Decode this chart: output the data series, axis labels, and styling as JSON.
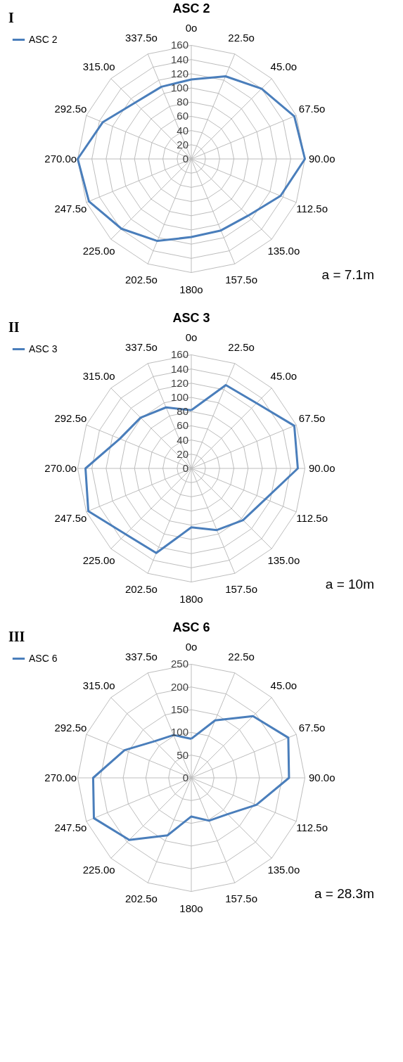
{
  "chart_data": [
    {
      "type": "radar",
      "title": "ASC 2",
      "categories": [
        "0o",
        "22.5o",
        "45.0o",
        "67.5o",
        "90.0o",
        "112.5o",
        "135.0o",
        "157.5o",
        "180o",
        "202.5o",
        "225.0o",
        "247.5o",
        "270.0o",
        "292.5o",
        "315.0o",
        "337.5o"
      ],
      "series": [
        {
          "name": "ASC 2",
          "color": "#4a7ebb",
          "values": [
            112,
            126,
            140,
            157,
            160,
            136,
            113,
            109,
            110,
            125,
            139,
            156,
            160,
            135,
            112,
            110
          ]
        }
      ],
      "ylim": [
        0,
        160
      ],
      "yticks": [
        0,
        20,
        40,
        60,
        80,
        100,
        120,
        140,
        160
      ],
      "grid": true,
      "legend": "top left",
      "annotations": [
        "I",
        "a = 7.1m"
      ]
    },
    {
      "type": "radar",
      "title": "ASC 3",
      "categories": [
        "0o",
        "22.5o",
        "45.0o",
        "67.5o",
        "90.0o",
        "112.5o",
        "135.0o",
        "157.5o",
        "180o",
        "202.5o",
        "225.0o",
        "247.5o",
        "270.0o",
        "292.5o",
        "315.0o",
        "337.5o"
      ],
      "series": [
        {
          "name": "ASC 3",
          "color": "#4a7ebb",
          "values": [
            82,
            127,
            130,
            157,
            150,
            113,
            103,
            94,
            83,
            129,
            131,
            157,
            149,
            109,
            101,
            93
          ]
        }
      ],
      "ylim": [
        0,
        160
      ],
      "yticks": [
        0,
        20,
        40,
        60,
        80,
        100,
        120,
        140,
        160
      ],
      "grid": true,
      "legend": "top left",
      "annotations": [
        "II",
        "a = 10m"
      ]
    },
    {
      "type": "radar",
      "title": "ASC 6",
      "categories": [
        "0o",
        "22.5o",
        "45.0o",
        "67.5o",
        "90.0o",
        "112.5o",
        "135.0o",
        "157.5o",
        "180o",
        "202.5o",
        "225.0o",
        "247.5o",
        "270.0o",
        "292.5o",
        "315.0o",
        "337.5o"
      ],
      "series": [
        {
          "name": "ASC 6",
          "color": "#4a7ebb",
          "values": [
            86,
            137,
            192,
            231,
            215,
            155,
            113,
            102,
            85,
            137,
            193,
            232,
            216,
            159,
            114,
            102
          ]
        }
      ],
      "ylim": [
        0,
        250
      ],
      "yticks": [
        0,
        50,
        100,
        150,
        200,
        250
      ],
      "grid": true,
      "legend": "top left",
      "annotations": [
        "III",
        "a = 28.3m"
      ]
    }
  ]
}
